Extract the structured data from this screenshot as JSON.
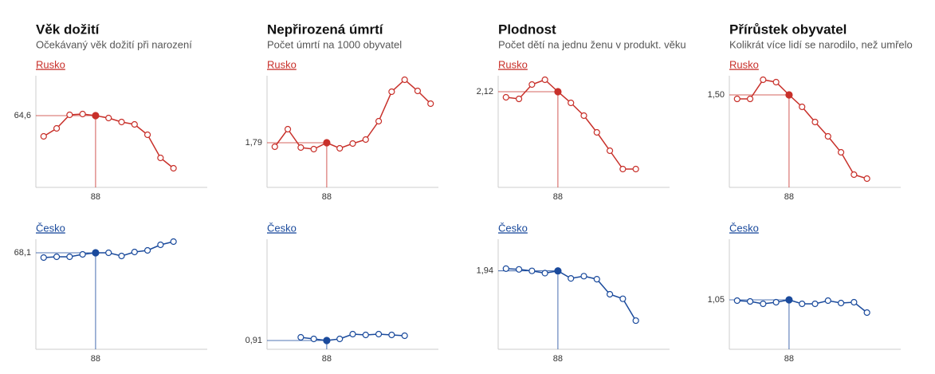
{
  "chart_data": [
    {
      "type": "line",
      "title": "Věk dožití",
      "subtitle": "Očekávaný věk dožití při narození",
      "x": [
        84,
        85,
        86,
        87,
        88,
        89,
        90,
        91,
        92,
        93,
        94
      ],
      "xlim": [
        83.4,
        96.6
      ],
      "xticks": [
        88
      ],
      "series": [
        {
          "name": "Rusko",
          "color": "#c8302a",
          "values": [
            63.3,
            63.8,
            64.65,
            64.7,
            64.6,
            64.45,
            64.2,
            64.05,
            63.4,
            61.95,
            61.3
          ],
          "ylim": [
            60.1,
            67.1
          ],
          "yticks": [
            {
              "value": 64.6,
              "label": "64,6"
            }
          ]
        },
        {
          "name": "Česko",
          "color": "#1a4a9c",
          "values": [
            67.8,
            67.85,
            67.85,
            68.0,
            68.1,
            68.1,
            67.9,
            68.15,
            68.25,
            68.6,
            68.8
          ],
          "ylim": [
            62.05,
            68.95
          ],
          "yticks": [
            {
              "value": 68.1,
              "label": "68,1"
            }
          ]
        }
      ]
    },
    {
      "type": "line",
      "title": "Nepřirozená úmrtí",
      "subtitle": "Počet úmrtí na 1000 obyvatel",
      "x": [
        84,
        85,
        86,
        87,
        88,
        89,
        90,
        91,
        92,
        93,
        94,
        95,
        96
      ],
      "xlim": [
        83.4,
        96.6
      ],
      "xticks": [
        88
      ],
      "series": [
        {
          "name": "Rusko",
          "color": "#c8302a",
          "values": [
            1.74,
            1.96,
            1.73,
            1.71,
            1.79,
            1.72,
            1.78,
            1.83,
            2.06,
            2.43,
            2.58,
            2.44,
            2.28
          ],
          "ylim": [
            1.23,
            2.63
          ],
          "yticks": [
            {
              "value": 1.79,
              "label": "1,79"
            }
          ]
        },
        {
          "name": "Česko",
          "color": "#1a4a9c",
          "values": [
            null,
            null,
            0.95,
            0.93,
            0.91,
            0.93,
            0.99,
            0.98,
            0.99,
            0.98,
            0.97,
            null,
            null
          ],
          "ylim": [
            0.8,
            2.18
          ],
          "yticks": [
            {
              "value": 0.91,
              "label": "0,91"
            }
          ]
        }
      ]
    },
    {
      "type": "line",
      "title": "Plodnost",
      "subtitle": "Počet dětí na jednu ženu v produkt. věku",
      "x": [
        84,
        85,
        86,
        87,
        88,
        89,
        90,
        91,
        92,
        93,
        94
      ],
      "xlim": [
        83.4,
        96.6
      ],
      "xticks": [
        88
      ],
      "series": [
        {
          "name": "Rusko",
          "color": "#c8302a",
          "values": [
            2.085,
            2.075,
            2.165,
            2.195,
            2.12,
            2.05,
            1.97,
            1.865,
            1.75,
            1.635,
            1.635
          ],
          "ylim": [
            1.52,
            2.22
          ],
          "yticks": [
            {
              "value": 2.12,
              "label": "2,12"
            }
          ]
        },
        {
          "name": "Česko",
          "color": "#1a4a9c",
          "values": [
            1.955,
            1.95,
            1.94,
            1.925,
            1.94,
            1.89,
            1.905,
            1.885,
            1.785,
            1.755,
            1.61
          ],
          "ylim": [
            1.42,
            2.15
          ],
          "yticks": [
            {
              "value": 1.94,
              "label": "1,94"
            }
          ]
        }
      ]
    },
    {
      "type": "line",
      "title": "Přírůstek obyvatel",
      "subtitle": "Kolikrát více lidí se narodilo, než umřelo",
      "x": [
        84,
        85,
        86,
        87,
        88,
        89,
        90,
        91,
        92,
        93,
        94
      ],
      "xlim": [
        83.4,
        96.6
      ],
      "xticks": [
        88
      ],
      "series": [
        {
          "name": "Rusko",
          "color": "#c8302a",
          "values": [
            1.45,
            1.45,
            1.69,
            1.66,
            1.5,
            1.35,
            1.16,
            0.98,
            0.78,
            0.5,
            0.45
          ],
          "ylim": [
            0.34,
            1.74
          ],
          "yticks": [
            {
              "value": 1.5,
              "label": "1,50"
            }
          ]
        },
        {
          "name": "Česko",
          "color": "#1a4a9c",
          "values": [
            1.04,
            1.03,
            1.0,
            1.02,
            1.05,
            1.0,
            1.0,
            1.04,
            1.01,
            1.02,
            0.89
          ],
          "ylim": [
            0.43,
            1.81
          ],
          "yticks": [
            {
              "value": 1.05,
              "label": "1,05"
            }
          ]
        }
      ]
    }
  ]
}
